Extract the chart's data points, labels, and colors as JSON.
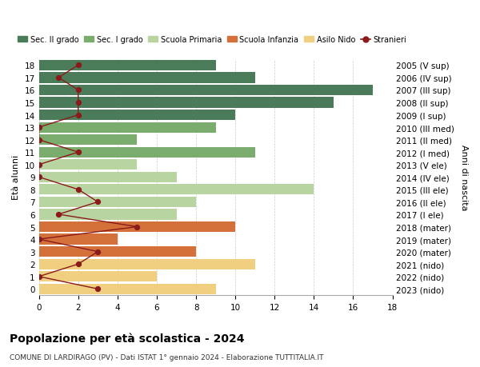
{
  "ages": [
    18,
    17,
    16,
    15,
    14,
    13,
    12,
    11,
    10,
    9,
    8,
    7,
    6,
    5,
    4,
    3,
    2,
    1,
    0
  ],
  "right_labels": [
    "2005 (V sup)",
    "2006 (IV sup)",
    "2007 (III sup)",
    "2008 (II sup)",
    "2009 (I sup)",
    "2010 (III med)",
    "2011 (II med)",
    "2012 (I med)",
    "2013 (V ele)",
    "2014 (IV ele)",
    "2015 (III ele)",
    "2016 (II ele)",
    "2017 (I ele)",
    "2018 (mater)",
    "2019 (mater)",
    "2020 (mater)",
    "2021 (nido)",
    "2022 (nido)",
    "2023 (nido)"
  ],
  "bar_values": [
    9,
    11,
    17,
    15,
    10,
    9,
    5,
    11,
    5,
    7,
    14,
    8,
    7,
    10,
    4,
    8,
    11,
    6,
    9
  ],
  "bar_colors": [
    "#4a7c59",
    "#4a7c59",
    "#4a7c59",
    "#4a7c59",
    "#4a7c59",
    "#7aac6e",
    "#7aac6e",
    "#7aac6e",
    "#b8d4a0",
    "#b8d4a0",
    "#b8d4a0",
    "#b8d4a0",
    "#b8d4a0",
    "#d4703a",
    "#d4703a",
    "#d4703a",
    "#f0d080",
    "#f0d080",
    "#f0d080"
  ],
  "stranieri_values": [
    2,
    1,
    2,
    2,
    2,
    0,
    0,
    2,
    0,
    0,
    2,
    3,
    1,
    5,
    0,
    3,
    2,
    0,
    3
  ],
  "title": "Popolazione per età scolastica - 2024",
  "subtitle": "COMUNE DI LARDIRAGO (PV) - Dati ISTAT 1° gennaio 2024 - Elaborazione TUTTITALIA.IT",
  "ylabel_left": "Età alunni",
  "ylabel_right": "Anni di nascita",
  "xlim": [
    0,
    18
  ],
  "colors": {
    "sec2": "#4a7c59",
    "sec1": "#7aac6e",
    "primaria": "#b8d4a0",
    "infanzia": "#d4703a",
    "nido": "#f0d080",
    "stranieri": "#8b1a1a"
  },
  "legend_labels": [
    "Sec. II grado",
    "Sec. I grado",
    "Scuola Primaria",
    "Scuola Infanzia",
    "Asilo Nido",
    "Stranieri"
  ],
  "bg_color": "#ffffff"
}
